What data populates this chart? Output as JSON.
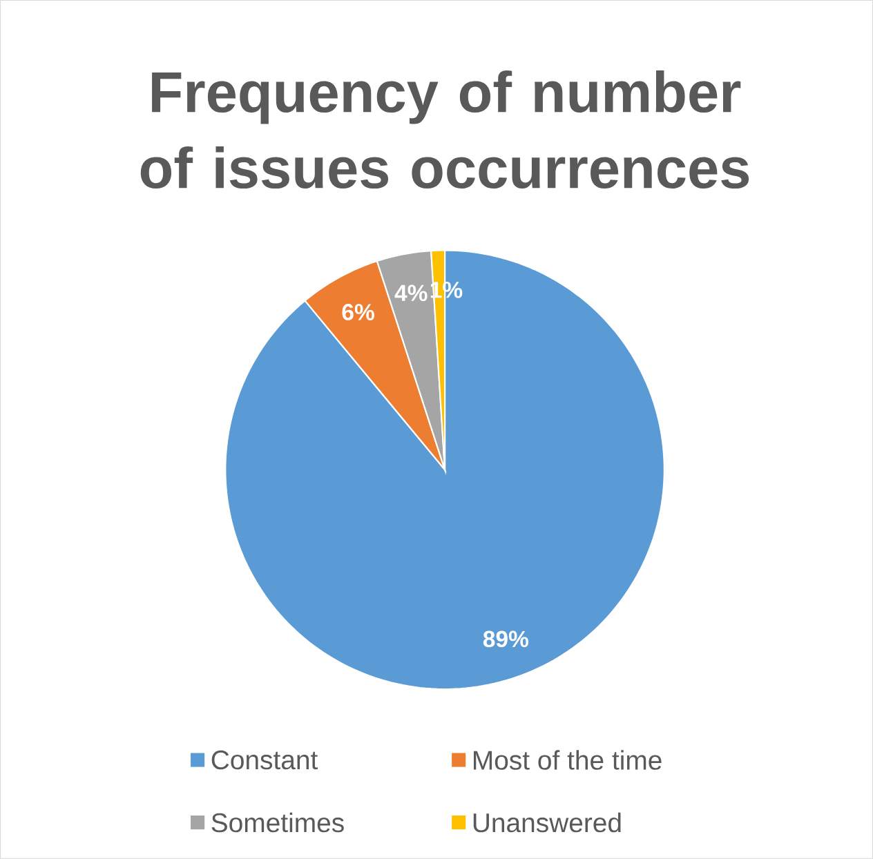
{
  "chart_data": {
    "type": "pie",
    "title": "Frequency of number of issues occurrences",
    "categories": [
      "Constant",
      "Most of the time",
      "Sometimes",
      "Unanswered"
    ],
    "values": [
      89,
      6,
      4,
      1
    ],
    "colors": [
      "#5b9bd5",
      "#ed7d31",
      "#a5a5a5",
      "#ffc000"
    ],
    "value_labels": [
      "89%",
      "6%",
      "4%",
      "1%"
    ],
    "legend": "bottom"
  }
}
